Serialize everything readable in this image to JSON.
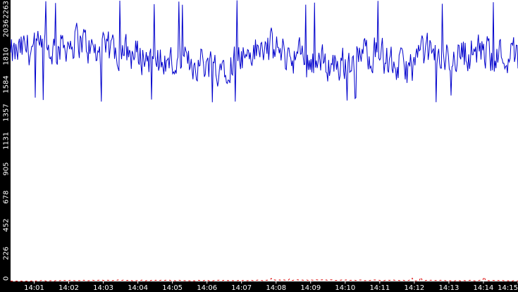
{
  "chart_data": {
    "type": "line",
    "title": "",
    "xlabel": "",
    "ylabel": "",
    "y_ticks": [
      0,
      226,
      452,
      678,
      905,
      1131,
      1357,
      1584,
      1810,
      2036,
      2263
    ],
    "ylim": [
      0,
      2263
    ],
    "x_ticks": [
      "14:01",
      "14:02",
      "14:03",
      "14:04",
      "14:05",
      "14:06",
      "14:07",
      "14:08",
      "14:09",
      "14:10",
      "14:11",
      "14:12",
      "14:13",
      "14:14",
      "14:15"
    ],
    "xlim": [
      "14:00:19",
      "14:15:00"
    ],
    "grid": false,
    "legend": "none",
    "colors": {
      "background": "#ffffff",
      "axis_band": "#000000",
      "tick_label": "#ffffff",
      "series_primary": "#0000cc",
      "series_secondary": "#dd0000"
    },
    "series": [
      {
        "color": "#0000cc",
        "x": [
          "14:00:19",
          "14:00:49",
          "14:01:19",
          "14:01:49",
          "14:02:19",
          "14:02:49",
          "14:03:19",
          "14:03:49",
          "14:04:19",
          "14:04:49",
          "14:05:19",
          "14:05:49",
          "14:06:19",
          "14:06:49",
          "14:07:19",
          "14:07:49",
          "14:08:19",
          "14:08:49",
          "14:09:19",
          "14:09:49",
          "14:10:19",
          "14:10:49",
          "14:11:19",
          "14:11:49",
          "14:12:19",
          "14:12:49",
          "14:13:19",
          "14:13:49",
          "14:14:19",
          "14:14:49",
          "14:15:00"
        ],
        "values": [
          1800,
          1880,
          1840,
          1900,
          1950,
          1820,
          1870,
          1830,
          1800,
          1760,
          1740,
          1770,
          1730,
          1790,
          1840,
          1880,
          1820,
          1800,
          1760,
          1740,
          1800,
          1860,
          1750,
          1700,
          1850,
          1780,
          1830,
          1850,
          1820,
          1830,
          1800
        ],
        "min": 1440,
        "max": 2263
      },
      {
        "color": "#dd0000",
        "x": [
          "14:00:19",
          "14:03:00",
          "14:06:00",
          "14:09:00",
          "14:12:00",
          "14:15:00"
        ],
        "values": [
          0,
          6,
          4,
          8,
          5,
          3
        ],
        "max": 40
      }
    ]
  }
}
